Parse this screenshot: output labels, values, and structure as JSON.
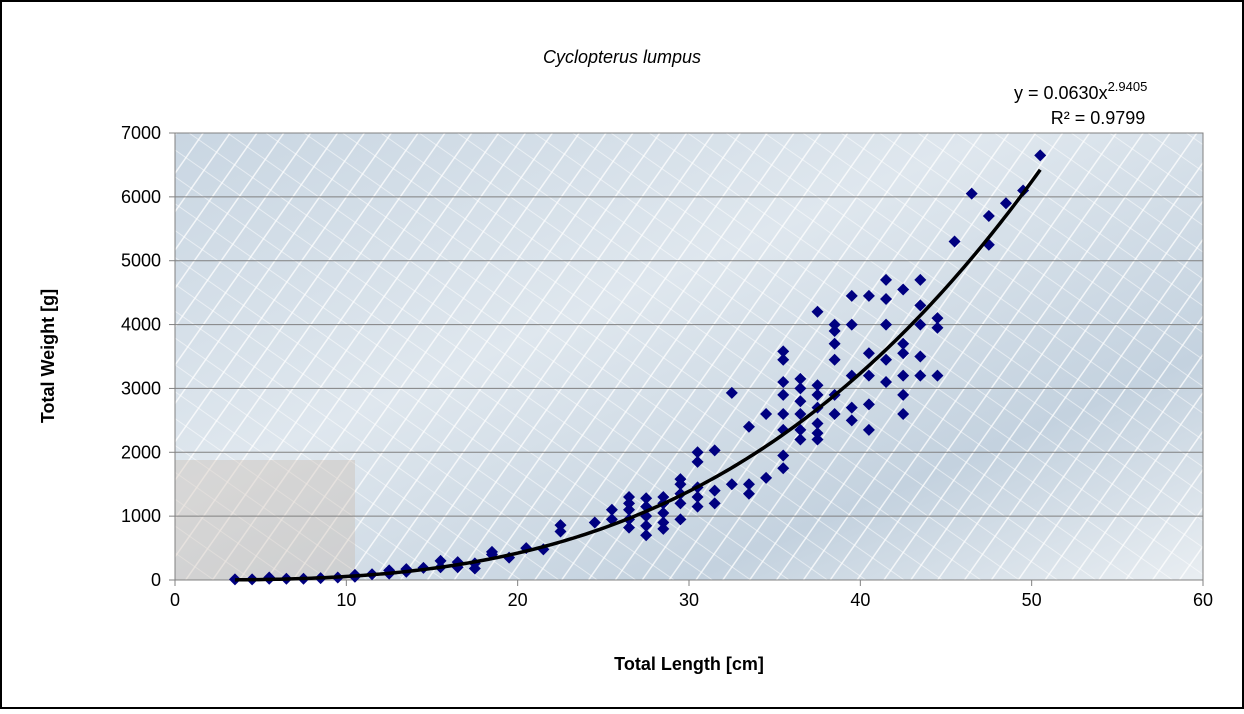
{
  "chart_data": {
    "type": "scatter",
    "title": "Cyclopterus lumpus",
    "x_label": "Total Length [cm]",
    "y_label": "Total Weight [g]",
    "xlim": [
      0,
      60
    ],
    "xticks": [
      0,
      10,
      20,
      30,
      40,
      50,
      60
    ],
    "ylim": [
      0,
      7000
    ],
    "yticks": [
      0,
      1000,
      2000,
      3000,
      4000,
      5000,
      6000,
      7000
    ],
    "grid": true,
    "color": "#000080",
    "trendline": {
      "coefficient": {
        "value": 0.063,
        "label": "y = 0.0630x"
      },
      "exponent": 2.9405,
      "r_squared": {
        "value": 0.9799,
        "label": "R² = 0.9799"
      },
      "color": "#000000"
    },
    "x": [
      3.5,
      4.5,
      5.5,
      5.5,
      6.5,
      7.5,
      8.5,
      9.5,
      10.5,
      10.5,
      11.5,
      12.5,
      12.5,
      13.5,
      13.5,
      14.5,
      15.5,
      15.5,
      16.5,
      16.5,
      17.5,
      17.5,
      18.5,
      18.5,
      19.5,
      20.5,
      21.5,
      22.5,
      22.5,
      24.5,
      25.5,
      25.5,
      26.5,
      26.5,
      26.5,
      26.5,
      26.5,
      27.5,
      27.5,
      27.5,
      27.5,
      27.5,
      28.5,
      28.5,
      28.5,
      28.5,
      28.5,
      29.5,
      29.5,
      29.5,
      29.5,
      29.5,
      30.5,
      30.5,
      30.5,
      30.5,
      30.5,
      31.5,
      31.5,
      31.5,
      32.5,
      32.5,
      33.5,
      33.5,
      33.5,
      34.5,
      34.5,
      35.5,
      35.5,
      35.5,
      35.5,
      35.5,
      35.5,
      35.5,
      35.5,
      36.5,
      36.5,
      36.5,
      36.5,
      36.5,
      36.5,
      37.5,
      37.5,
      37.5,
      37.5,
      37.5,
      37.5,
      37.5,
      38.5,
      38.5,
      38.5,
      38.5,
      38.5,
      38.5,
      39.5,
      39.5,
      39.5,
      39.5,
      39.5,
      40.5,
      40.5,
      40.5,
      40.5,
      40.5,
      41.5,
      41.5,
      41.5,
      41.5,
      41.5,
      42.5,
      42.5,
      42.5,
      42.5,
      42.5,
      42.5,
      43.5,
      43.5,
      43.5,
      43.5,
      43.5,
      44.5,
      44.5,
      44.5,
      45.5,
      46.5,
      47.5,
      47.5,
      48.5,
      49.5,
      50.5
    ],
    "values": [
      10,
      10,
      20,
      40,
      20,
      20,
      30,
      40,
      50,
      80,
      90,
      100,
      150,
      130,
      170,
      190,
      200,
      300,
      200,
      280,
      180,
      260,
      400,
      440,
      350,
      500,
      480,
      760,
      860,
      900,
      950,
      1100,
      820,
      950,
      1100,
      1200,
      1300,
      700,
      850,
      1000,
      1150,
      1280,
      800,
      900,
      1050,
      1200,
      1300,
      950,
      1200,
      1350,
      1500,
      1580,
      1150,
      1300,
      1450,
      1850,
      2000,
      1200,
      1400,
      2030,
      1500,
      2930,
      1350,
      1500,
      2400,
      1600,
      2600,
      1750,
      1950,
      2350,
      2600,
      2900,
      3100,
      3450,
      3580,
      2200,
      2350,
      2600,
      2800,
      3000,
      3150,
      2200,
      2300,
      2450,
      2700,
      2900,
      3050,
      4200,
      2600,
      2900,
      3450,
      3700,
      3900,
      4000,
      2500,
      2700,
      3200,
      4000,
      4450,
      2350,
      2750,
      3200,
      3550,
      4450,
      3100,
      3450,
      4000,
      4400,
      4700,
      2600,
      2900,
      3200,
      3550,
      3700,
      4550,
      3200,
      3500,
      4000,
      4300,
      4700,
      3200,
      3950,
      4100,
      5300,
      6050,
      5250,
      5700,
      5900,
      6100,
      6650
    ]
  }
}
